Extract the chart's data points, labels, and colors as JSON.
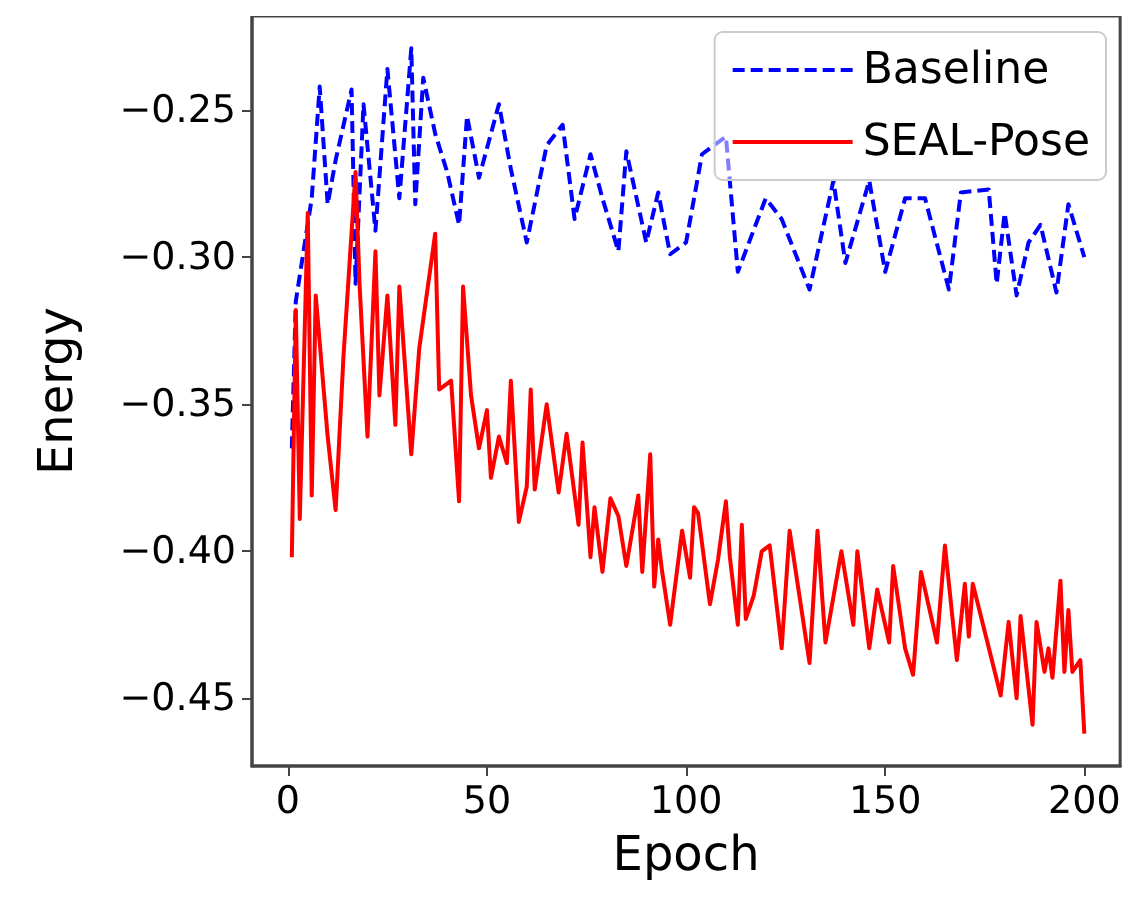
{
  "chart_data": {
    "type": "line",
    "xlabel": "Epoch",
    "ylabel": "Energy",
    "xlim": [
      -9,
      209
    ],
    "xticks": [
      0,
      50,
      100,
      150,
      200
    ],
    "ylim": [
      -0.473,
      -0.218
    ],
    "yticks": [
      {
        "value": -0.45,
        "label": "−0.45"
      },
      {
        "value": -0.4,
        "label": "−0.40"
      },
      {
        "value": -0.35,
        "label": "−0.35"
      },
      {
        "value": -0.3,
        "label": "−0.30"
      },
      {
        "value": -0.25,
        "label": "−0.25"
      }
    ],
    "grid": false,
    "legend": "top right",
    "marker": "none",
    "series": [
      {
        "name": "Baseline",
        "color": "#0000ff",
        "line_style": "dashed",
        "x": [
          1,
          2,
          6,
          8,
          10,
          12,
          16,
          17,
          19,
          22,
          25,
          28,
          31,
          32,
          34,
          37,
          40,
          43,
          45,
          48,
          53,
          56,
          60,
          65,
          69,
          72,
          76,
          79,
          83,
          85,
          90,
          93,
          96,
          100,
          104,
          110,
          113,
          120,
          124,
          131,
          137,
          140,
          146,
          150,
          155,
          160,
          166,
          169,
          176,
          178,
          180,
          183,
          186,
          189,
          193,
          196,
          200
        ],
        "values": [
          -0.365,
          -0.315,
          -0.28,
          -0.242,
          -0.282,
          -0.267,
          -0.243,
          -0.309,
          -0.248,
          -0.291,
          -0.236,
          -0.28,
          -0.229,
          -0.282,
          -0.239,
          -0.258,
          -0.271,
          -0.289,
          -0.252,
          -0.273,
          -0.248,
          -0.27,
          -0.295,
          -0.262,
          -0.255,
          -0.287,
          -0.265,
          -0.28,
          -0.298,
          -0.264,
          -0.295,
          -0.278,
          -0.299,
          -0.295,
          -0.265,
          -0.259,
          -0.305,
          -0.28,
          -0.287,
          -0.311,
          -0.274,
          -0.302,
          -0.274,
          -0.305,
          -0.28,
          -0.28,
          -0.311,
          -0.278,
          -0.277,
          -0.309,
          -0.285,
          -0.313,
          -0.295,
          -0.289,
          -0.312,
          -0.282,
          -0.3
        ]
      },
      {
        "name": "SEAL-Pose",
        "color": "#ff0000",
        "line_style": "solid",
        "x": [
          1,
          2,
          3,
          5,
          6,
          7,
          10,
          12,
          14,
          17,
          18,
          20,
          22,
          23,
          25,
          27,
          28,
          31,
          33,
          37,
          38,
          41,
          43,
          44,
          46,
          48,
          50,
          51,
          53,
          55,
          56,
          58,
          60,
          61,
          62,
          65,
          68,
          70,
          73,
          74,
          76,
          77,
          79,
          81,
          83,
          85,
          88,
          89,
          91,
          92,
          93,
          94,
          96,
          99,
          101,
          102,
          103,
          106,
          108,
          110,
          111,
          113,
          114,
          115,
          117,
          119,
          121,
          124,
          126,
          128,
          131,
          133,
          135,
          139,
          142,
          143,
          146,
          148,
          151,
          152,
          155,
          157,
          159,
          163,
          165,
          168,
          170,
          171,
          172,
          179,
          181,
          183,
          184,
          187,
          188,
          190,
          191,
          192,
          194,
          195,
          196,
          197,
          199,
          200
        ],
        "values": [
          -0.402,
          -0.318,
          -0.389,
          -0.285,
          -0.381,
          -0.313,
          -0.361,
          -0.386,
          -0.333,
          -0.271,
          -0.309,
          -0.361,
          -0.298,
          -0.347,
          -0.313,
          -0.357,
          -0.31,
          -0.367,
          -0.331,
          -0.292,
          -0.345,
          -0.342,
          -0.383,
          -0.31,
          -0.347,
          -0.365,
          -0.352,
          -0.375,
          -0.361,
          -0.37,
          -0.342,
          -0.39,
          -0.378,
          -0.345,
          -0.379,
          -0.35,
          -0.38,
          -0.36,
          -0.391,
          -0.363,
          -0.402,
          -0.385,
          -0.407,
          -0.382,
          -0.388,
          -0.405,
          -0.381,
          -0.407,
          -0.367,
          -0.412,
          -0.396,
          -0.407,
          -0.425,
          -0.393,
          -0.409,
          -0.385,
          -0.387,
          -0.418,
          -0.403,
          -0.383,
          -0.402,
          -0.425,
          -0.391,
          -0.423,
          -0.415,
          -0.4,
          -0.398,
          -0.433,
          -0.393,
          -0.411,
          -0.438,
          -0.393,
          -0.431,
          -0.4,
          -0.425,
          -0.4,
          -0.433,
          -0.413,
          -0.431,
          -0.405,
          -0.433,
          -0.442,
          -0.407,
          -0.431,
          -0.398,
          -0.437,
          -0.411,
          -0.429,
          -0.411,
          -0.449,
          -0.424,
          -0.45,
          -0.422,
          -0.459,
          -0.424,
          -0.441,
          -0.433,
          -0.443,
          -0.41,
          -0.441,
          -0.42,
          -0.441,
          -0.437,
          -0.462
        ]
      }
    ]
  }
}
